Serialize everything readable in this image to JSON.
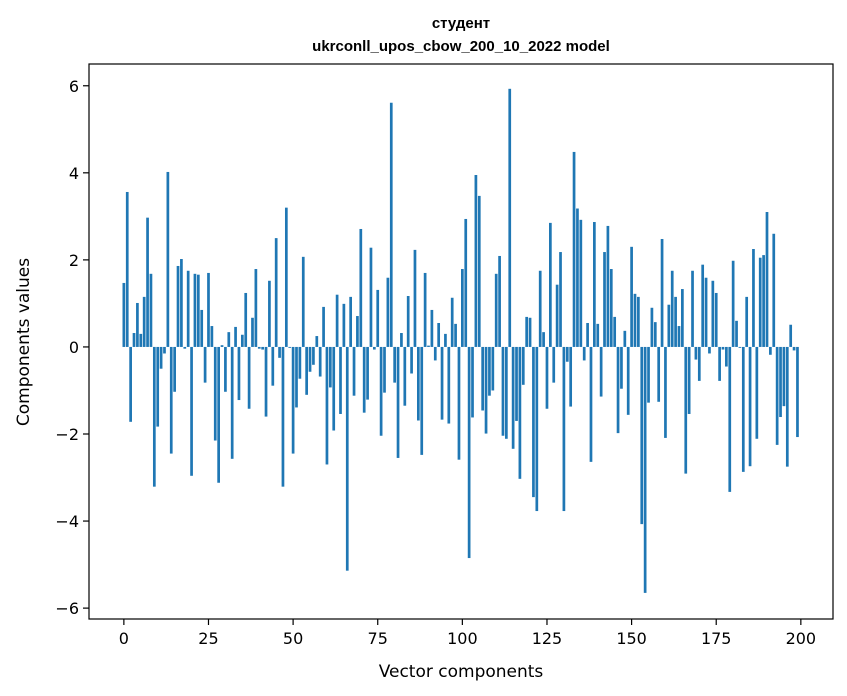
{
  "chart_data": {
    "type": "bar",
    "title": "студент",
    "subtitle": "ukrconll_upos_cbow_200_10_2022 model",
    "xlabel": "Vector components",
    "ylabel": "Components values",
    "xlim": [
      -10.3,
      209.5
    ],
    "ylim": [
      -6.25,
      6.5
    ],
    "xticks": [
      0,
      25,
      50,
      75,
      100,
      125,
      150,
      175,
      200
    ],
    "xtick_labels": [
      "0",
      "25",
      "50",
      "75",
      "100",
      "125",
      "150",
      "175",
      "200"
    ],
    "yticks": [
      -6,
      -4,
      -2,
      0,
      2,
      4,
      6
    ],
    "ytick_labels": [
      "−6",
      "−4",
      "−2",
      "0",
      "2",
      "4",
      "6"
    ],
    "grid": false,
    "bar_color": "#1f77b4",
    "values": [
      1.47,
      3.56,
      -1.72,
      0.32,
      1.01,
      0.3,
      1.15,
      2.97,
      1.68,
      -3.21,
      -1.83,
      -0.5,
      -0.15,
      4.02,
      -2.45,
      -1.03,
      1.86,
      2.02,
      -0.04,
      1.75,
      -2.96,
      1.68,
      1.66,
      0.85,
      -0.82,
      1.7,
      0.48,
      -2.15,
      -3.12,
      0.04,
      -1.03,
      0.34,
      -2.57,
      0.46,
      -1.22,
      0.28,
      1.24,
      -1.42,
      0.67,
      1.79,
      -0.04,
      -0.06,
      -1.6,
      1.52,
      -0.89,
      2.5,
      -0.25,
      -3.21,
      3.2,
      -0.02,
      -2.45,
      -1.39,
      -0.73,
      2.07,
      -1.1,
      -0.57,
      -0.41,
      0.25,
      -0.68,
      0.92,
      -2.7,
      -0.93,
      -1.92,
      1.2,
      -1.54,
      0.99,
      -5.14,
      1.15,
      -1.12,
      0.71,
      2.71,
      -1.51,
      -1.21,
      2.28,
      -0.06,
      1.31,
      -2.04,
      -1.05,
      1.59,
      5.61,
      -0.82,
      -2.55,
      0.32,
      -1.35,
      1.17,
      -0.61,
      2.23,
      -1.69,
      -2.48,
      1.7,
      0.03,
      0.85,
      -0.31,
      0.55,
      -1.67,
      0.3,
      -1.76,
      1.13,
      0.53,
      -2.59,
      1.79,
      2.94,
      -4.85,
      -1.62,
      3.95,
      3.47,
      -1.46,
      -1.99,
      -1.12,
      -1.0,
      1.68,
      2.09,
      -2.04,
      -2.11,
      5.93,
      -2.34,
      -1.7,
      -3.03,
      -0.87,
      0.69,
      0.67,
      -3.45,
      -3.77,
      1.75,
      0.34,
      -1.42,
      2.85,
      -0.82,
      1.43,
      2.18,
      -3.77,
      -0.34,
      -1.37,
      4.48,
      3.18,
      2.92,
      -0.31,
      0.55,
      -2.64,
      2.87,
      0.53,
      -1.14,
      2.18,
      2.78,
      1.79,
      0.69,
      -1.98,
      -0.96,
      0.37,
      -1.56,
      2.3,
      1.22,
      1.15,
      -4.07,
      -5.65,
      -1.28,
      0.9,
      0.57,
      -1.26,
      2.48,
      -2.09,
      0.97,
      1.75,
      1.15,
      0.48,
      1.33,
      -2.91,
      -1.54,
      1.75,
      -0.29,
      -0.78,
      1.89,
      1.59,
      -0.15,
      1.52,
      1.24,
      -0.78,
      -0.06,
      -0.45,
      -3.33,
      1.98,
      0.6,
      -0.02,
      -2.87,
      1.15,
      -2.74,
      2.25,
      -2.11,
      2.05,
      2.11,
      3.1,
      -0.18,
      2.6,
      -2.25,
      -1.61,
      -1.36,
      -2.75,
      0.51,
      -0.08,
      -2.07
    ]
  }
}
